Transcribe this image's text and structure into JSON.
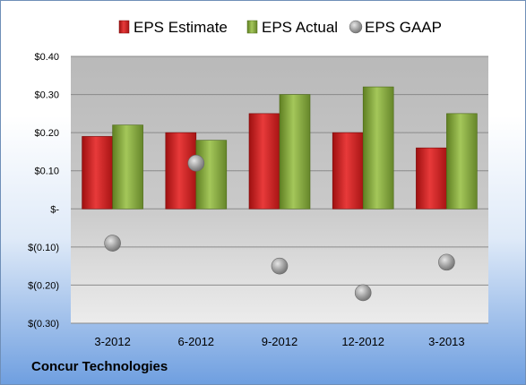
{
  "company": "Concur Technologies",
  "chart_data": {
    "type": "bar",
    "categories": [
      "3-2012",
      "6-2012",
      "9-2012",
      "12-2012",
      "3-2013"
    ],
    "series": [
      {
        "name": "EPS Estimate",
        "kind": "bar",
        "color": "#d42020",
        "values": [
          0.19,
          0.2,
          0.25,
          0.2,
          0.16
        ]
      },
      {
        "name": "EPS Actual",
        "kind": "bar",
        "color": "#8db03a",
        "values": [
          0.22,
          0.18,
          0.3,
          0.32,
          0.25
        ]
      },
      {
        "name": "EPS GAAP",
        "kind": "marker",
        "color": "#9a9a9a",
        "values": [
          -0.09,
          0.12,
          -0.15,
          -0.22,
          -0.14
        ]
      }
    ],
    "yticks": [
      "$0.40",
      "$0.30",
      "$0.20",
      "$0.10",
      "$-",
      "$(0.10)",
      "$(0.20)",
      "$(0.30)"
    ],
    "ytick_values": [
      0.4,
      0.3,
      0.2,
      0.1,
      0,
      -0.1,
      -0.2,
      -0.3
    ],
    "ylim": [
      -0.3,
      0.4
    ],
    "grid": true,
    "legend_position": "top"
  }
}
